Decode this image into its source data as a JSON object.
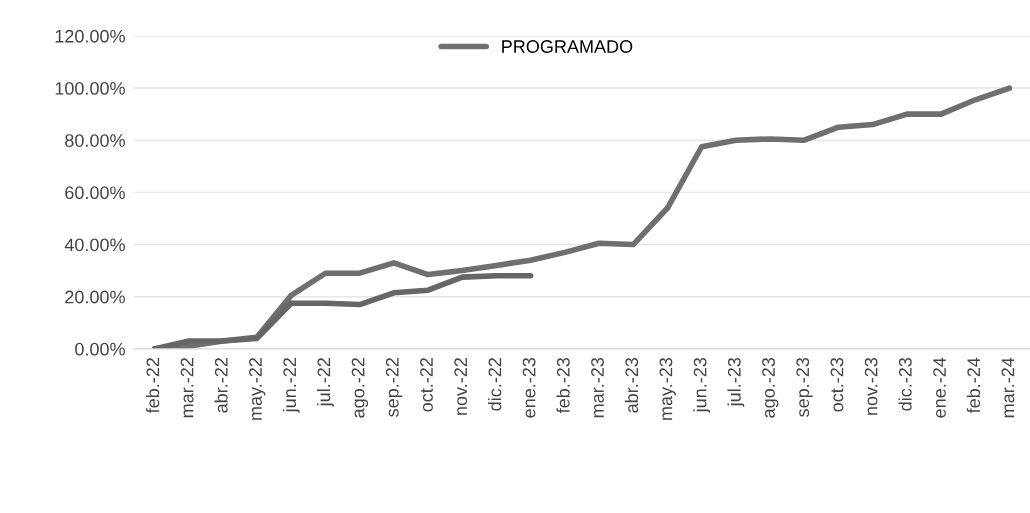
{
  "chart_data": {
    "type": "line",
    "categories": [
      "feb.-22",
      "mar.-22",
      "abr.-22",
      "may.-22",
      "jun.-22",
      "jul.-22",
      "ago.-22",
      "sep.-22",
      "oct.-22",
      "nov.-22",
      "dic.-22",
      "ene.-23",
      "feb.-23",
      "mar.-23",
      "abr.-23",
      "may.-23",
      "jun.-23",
      "jul.-23",
      "ago.-23",
      "sep.-23",
      "oct.-23",
      "nov.-23",
      "dic.-23",
      "ene.-24",
      "feb.-24",
      "mar.-24"
    ],
    "series": [
      {
        "name": "PROGRAMADO",
        "color": "#6f6f6f",
        "values": [
          0,
          1,
          3,
          4.5,
          20.5,
          29,
          29,
          33,
          28.5,
          30,
          32,
          34,
          37,
          40.5,
          40,
          54,
          77.5,
          80,
          80.5,
          80,
          85,
          86,
          90,
          90,
          95.5,
          100
        ]
      },
      {
        "color": "#666666",
        "values": [
          0,
          3,
          3,
          4,
          17.5,
          17.5,
          17,
          21.5,
          22.5,
          27.5,
          28,
          28,
          null,
          null,
          null,
          null,
          null,
          null,
          null,
          null,
          null,
          null,
          null,
          null,
          null,
          null
        ]
      }
    ],
    "ylim": [
      0,
      120
    ],
    "yticks": [
      {
        "value": 0,
        "label": "0.00%"
      },
      {
        "value": 20,
        "label": "20.00%"
      },
      {
        "value": 40,
        "label": "40.00%"
      },
      {
        "value": 60,
        "label": "60.00%"
      },
      {
        "value": 80,
        "label": "80.00%"
      },
      {
        "value": 100,
        "label": "100.00%"
      },
      {
        "value": 120,
        "label": "120.00%"
      }
    ],
    "grid": "y",
    "legend": "top",
    "marker": "none",
    "line_style": "solid"
  }
}
